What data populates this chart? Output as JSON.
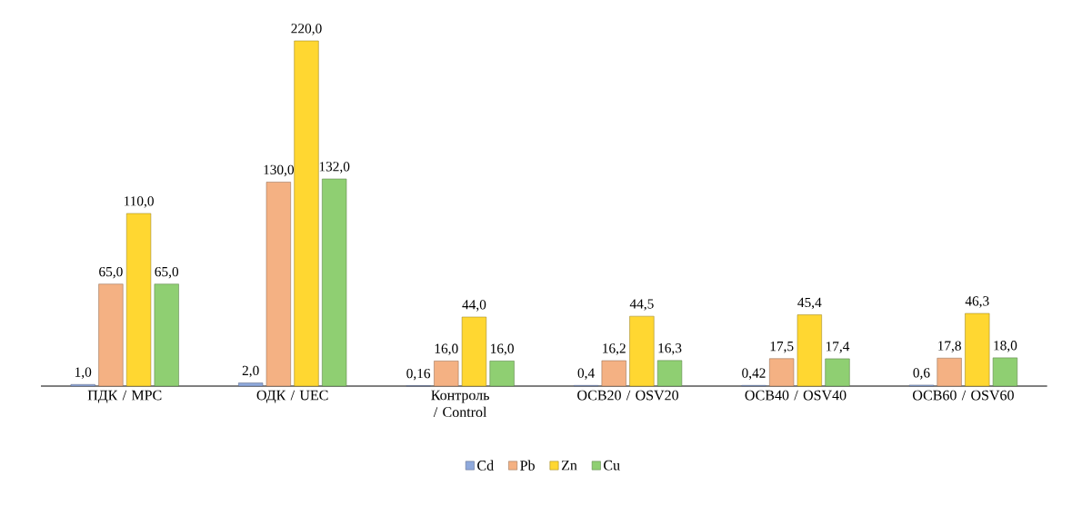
{
  "chart_data": {
    "type": "bar",
    "categories": [
      "ПДК / MPC",
      "ОДК / UEC",
      "Контроль / Control",
      "ОСВ20 / OSV20",
      "ОСВ40 / OSV40",
      "ОСВ60 / OSV60"
    ],
    "series": [
      {
        "name": "Cd",
        "color": "#8fa9dc",
        "values": [
          1.0,
          2.0,
          0.16,
          0.4,
          0.42,
          0.6
        ],
        "value_labels": [
          "1,0",
          "2,0",
          "0,16",
          "0,4",
          "0,42",
          "0,6"
        ]
      },
      {
        "name": "Pb",
        "color": "#f4b183",
        "values": [
          65.0,
          130.0,
          16.0,
          16.2,
          17.5,
          17.8
        ],
        "value_labels": [
          "65,0",
          "130,0",
          "16,0",
          "16,2",
          "17,5",
          "17,8"
        ]
      },
      {
        "name": "Zn",
        "color": "#ffd731",
        "values": [
          110.0,
          220.0,
          44.0,
          44.5,
          45.4,
          46.3
        ],
        "value_labels": [
          "110,0",
          "220,0",
          "44,0",
          "44,5",
          "45,4",
          "46,3"
        ]
      },
      {
        "name": "Cu",
        "color": "#8fcf72",
        "values": [
          65.0,
          132.0,
          16.0,
          16.3,
          17.4,
          18.0
        ],
        "value_labels": [
          "65,0",
          "132,0",
          "16,0",
          "16,3",
          "17,4",
          "18,0"
        ]
      }
    ],
    "legend": "bottom"
  }
}
